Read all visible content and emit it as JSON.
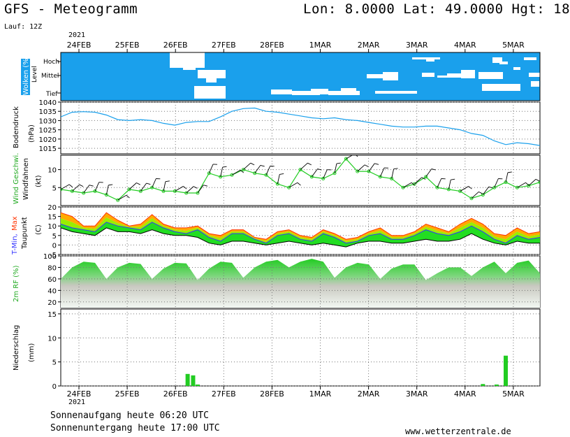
{
  "header": {
    "title": "GFS - Meteogramm",
    "location": "Lon: 8.0000 Lat: 49.0000 Hgt: 18",
    "run": "Lauf: 12Z",
    "year": "2021"
  },
  "footer": {
    "sunrise": "Sonnenaufgang heute 06:20 UTC",
    "sunset": "Sonnenuntergang heute 17:00 UTC",
    "site": "www.wetterzentrale.de"
  },
  "colors": {
    "cloud_bg": "#1aa0ec",
    "cloud": "#ffffff",
    "pressure": "#1aa0ec",
    "wind_speed": "#22cc22",
    "barb": "#000000",
    "temp_max": "#ff3300",
    "temp_orange": "#ffaa00",
    "temp_band": "#99ee00",
    "temp_min": "#3333ff",
    "temp_green": "#22dd22",
    "dewpoint": "#000000",
    "rh": "#22cc22",
    "precip": "#22cc22",
    "grid": "#777777"
  },
  "chart_data": [
    {
      "type": "area",
      "panel": "Wolken (%)",
      "title": "Wolken (%)",
      "ylabel": "Level",
      "levels": [
        "Hoch",
        "Mittel",
        "Tief"
      ],
      "x": [
        "24FEB",
        "25FEB",
        "26FEB",
        "27FEB",
        "28FEB",
        "1MAR",
        "2MAR",
        "3MAR",
        "4MAR",
        "5MAR"
      ]
    },
    {
      "type": "line",
      "panel": "Bodendruck",
      "ylabel": "Bodendruck (hPa)",
      "ylim": [
        1012,
        1040
      ],
      "yticks": [
        1015,
        1020,
        1025,
        1030,
        1035,
        1040
      ],
      "series": [
        {
          "name": "Bodendruck",
          "x": [
            0,
            0.25,
            0.5,
            0.75,
            1,
            1.25,
            1.5,
            1.75,
            2,
            2.25,
            2.5,
            2.75,
            3,
            3.25,
            3.5,
            3.75,
            4,
            4.25,
            4.5,
            4.75,
            5,
            5.25,
            5.5,
            5.75,
            6,
            6.25,
            6.5,
            6.75,
            7,
            7.25,
            7.5,
            7.75,
            8,
            8.25,
            8.5,
            8.75,
            9,
            9.25,
            9.5,
            9.75,
            10,
            10.25,
            10.5
          ],
          "values": [
            1032,
            1034.5,
            1034.8,
            1034.5,
            1033,
            1030.5,
            1030,
            1030.5,
            1030,
            1028.5,
            1027.5,
            1029,
            1029.5,
            1029.5,
            1032,
            1035,
            1036.5,
            1036.8,
            1035,
            1034.5,
            1033.5,
            1032.5,
            1031.5,
            1031,
            1031.5,
            1030.5,
            1030,
            1029,
            1028,
            1027,
            1026.5,
            1026.5,
            1027,
            1027,
            1026,
            1025,
            1023,
            1022,
            1019,
            1017,
            1018,
            1017.5,
            1016.5
          ]
        }
      ]
    },
    {
      "type": "line",
      "panel": "Wind",
      "ylabel": "Wind Geschwi. Windfahnen (kt)",
      "ylim": [
        0,
        14
      ],
      "yticks": [
        5,
        10
      ],
      "series": [
        {
          "name": "Wind Geschwi.",
          "x": [
            0,
            0.25,
            0.5,
            0.75,
            1,
            1.25,
            1.5,
            1.75,
            2,
            2.25,
            2.5,
            2.75,
            3,
            3.25,
            3.5,
            3.75,
            4,
            4.25,
            4.5,
            4.75,
            5,
            5.25,
            5.5,
            5.75,
            6,
            6.25,
            6.5,
            6.75,
            7,
            7.25,
            7.5,
            7.75,
            8,
            8.25,
            8.5,
            8.75,
            9,
            9.25,
            9.5,
            9.75,
            10,
            10.25,
            10.5
          ],
          "values": [
            4.5,
            4,
            3.5,
            4,
            3,
            1.5,
            4.5,
            4,
            5,
            4,
            4,
            3.5,
            3.5,
            9,
            8,
            8.5,
            10,
            9,
            8.5,
            6,
            5,
            10,
            8,
            7.5,
            9,
            13,
            9.5,
            9.5,
            8,
            7.5,
            5,
            6,
            8,
            5,
            4.5,
            4,
            2,
            3,
            5,
            6.5,
            5,
            5.5,
            6.5
          ]
        }
      ]
    },
    {
      "type": "area",
      "panel": "Temperatur",
      "ylabel": "T-Min, Max Taupunkt (C)",
      "ylim": [
        -5,
        20
      ],
      "yticks": [
        -5,
        0,
        5,
        10,
        15,
        20
      ],
      "series": [
        {
          "name": "Max",
          "x": [
            0,
            0.25,
            0.5,
            0.75,
            1,
            1.25,
            1.5,
            1.75,
            2,
            2.25,
            2.5,
            2.75,
            3,
            3.25,
            3.5,
            3.75,
            4,
            4.25,
            4.5,
            4.75,
            5,
            5.25,
            5.5,
            5.75,
            6,
            6.25,
            6.5,
            6.75,
            7,
            7.25,
            7.5,
            7.75,
            8,
            8.25,
            8.5,
            8.75,
            9,
            9.25,
            9.5,
            9.75,
            10,
            10.25,
            10.5
          ],
          "values": [
            17,
            15,
            10,
            10,
            17,
            13,
            10,
            11,
            16,
            11,
            9,
            9,
            10,
            6,
            5,
            8,
            8,
            4,
            3,
            7,
            8,
            5,
            4,
            8,
            6,
            3,
            4,
            7,
            9,
            5,
            5,
            7,
            11,
            9,
            7,
            11,
            14,
            11,
            6,
            5,
            9,
            6,
            7
          ]
        },
        {
          "name": "Min",
          "x": [
            0,
            0.25,
            0.5,
            0.75,
            1,
            1.25,
            1.5,
            1.75,
            2,
            2.25,
            2.5,
            2.75,
            3,
            3.25,
            3.5,
            3.75,
            4,
            4.25,
            4.5,
            4.75,
            5,
            5.25,
            5.5,
            5.75,
            6,
            6.25,
            6.5,
            6.75,
            7,
            7.25,
            7.5,
            7.75,
            8,
            8.25,
            8.5,
            8.75,
            9,
            9.25,
            9.5,
            9.75,
            10,
            10.25,
            10.5
          ],
          "values": [
            11,
            9,
            8,
            7,
            12,
            10,
            9,
            8,
            12,
            9,
            7,
            6,
            8,
            4,
            2,
            6,
            6,
            3,
            1,
            5,
            6,
            3,
            2,
            6,
            4,
            1,
            2,
            5,
            6,
            3,
            3,
            5,
            8,
            6,
            5,
            7,
            10,
            7,
            3,
            1,
            5,
            3,
            4
          ]
        },
        {
          "name": "Taupunkt",
          "x": [
            0,
            0.25,
            0.5,
            0.75,
            1,
            1.25,
            1.5,
            1.75,
            2,
            2.25,
            2.5,
            2.75,
            3,
            3.25,
            3.5,
            3.75,
            4,
            4.25,
            4.5,
            4.75,
            5,
            5.25,
            5.5,
            5.75,
            6,
            6.25,
            6.5,
            6.75,
            7,
            7.25,
            7.5,
            7.75,
            8,
            8.25,
            8.5,
            8.75,
            9,
            9.25,
            9.5,
            9.75,
            10,
            10.25,
            10.5
          ],
          "values": [
            9,
            7,
            6,
            5,
            9,
            7,
            7,
            6,
            8,
            6,
            5,
            5,
            4,
            1,
            0,
            2,
            2,
            1,
            0,
            1,
            2,
            1,
            0,
            1,
            0,
            -1,
            1,
            2,
            2,
            1,
            1,
            2,
            3,
            2,
            2,
            3,
            6,
            3,
            1,
            0,
            2,
            1,
            1
          ]
        }
      ]
    },
    {
      "type": "area",
      "panel": "Relative Feuchte",
      "ylabel": "2m RF (%)",
      "ylim": [
        10,
        100
      ],
      "yticks": [
        20,
        40,
        60,
        80,
        100
      ],
      "series": [
        {
          "name": "2m RF",
          "x": [
            0,
            0.25,
            0.5,
            0.75,
            1,
            1.25,
            1.5,
            1.75,
            2,
            2.25,
            2.5,
            2.75,
            3,
            3.25,
            3.5,
            3.75,
            4,
            4.25,
            4.5,
            4.75,
            5,
            5.25,
            5.5,
            5.75,
            6,
            6.25,
            6.5,
            6.75,
            7,
            7.25,
            7.5,
            7.75,
            8,
            8.25,
            8.5,
            8.75,
            9,
            9.25,
            9.5,
            9.75,
            10,
            10.25,
            10.5
          ],
          "values": [
            60,
            80,
            90,
            88,
            60,
            80,
            88,
            86,
            60,
            78,
            88,
            87,
            58,
            78,
            90,
            88,
            62,
            80,
            90,
            93,
            80,
            90,
            95,
            90,
            62,
            80,
            88,
            85,
            60,
            78,
            85,
            85,
            58,
            70,
            80,
            80,
            65,
            80,
            90,
            70,
            88,
            92,
            70
          ]
        }
      ]
    },
    {
      "type": "bar",
      "panel": "Niederschlag",
      "ylabel": "Niederschlag (mm)",
      "ylim": [
        0,
        16
      ],
      "yticks": [
        0,
        5,
        10,
        15
      ],
      "x": [
        2.78,
        2.9,
        3.0,
        9.25,
        9.55,
        9.75
      ],
      "values": [
        2.5,
        2.2,
        0.3,
        0.4,
        0.3,
        6.3
      ]
    }
  ],
  "x_axis": {
    "labels": [
      "24FEB",
      "25FEB",
      "26FEB",
      "27FEB",
      "28FEB",
      "1MAR",
      "2MAR",
      "3MAR",
      "4MAR",
      "5MAR"
    ],
    "year": "2021"
  }
}
